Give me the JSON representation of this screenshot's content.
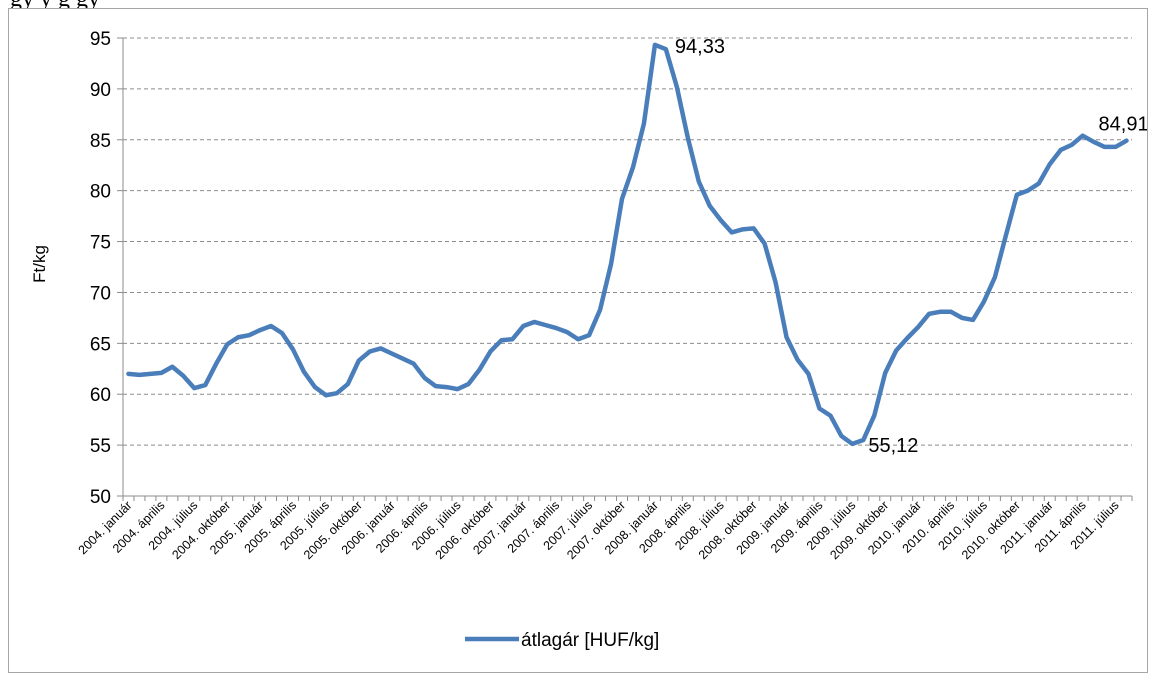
{
  "header_fragment": "gy  y  g  gy",
  "chart_data": {
    "type": "line",
    "ylabel": "Ft/kg",
    "xlabel": "",
    "ylim": [
      50,
      95
    ],
    "yticks": [
      50,
      55,
      60,
      65,
      70,
      75,
      80,
      85,
      90,
      95
    ],
    "grid": true,
    "legend_position": "bottom",
    "line_color": "#4a7ebb",
    "x": [
      "2004. január",
      "2004. február",
      "2004. március",
      "2004. április",
      "2004. május",
      "2004. június",
      "2004. július",
      "2004. augusztus",
      "2004. szeptember",
      "2004. október",
      "2004. november",
      "2004. december",
      "2005. január",
      "2005. február",
      "2005. március",
      "2005. április",
      "2005. május",
      "2005. június",
      "2005. július",
      "2005. augusztus",
      "2005. szeptember",
      "2005. október",
      "2005. november",
      "2005. december",
      "2006. január",
      "2006. február",
      "2006. március",
      "2006. április",
      "2006. május",
      "2006. június",
      "2006. július",
      "2006. augusztus",
      "2006. szeptember",
      "2006. október",
      "2006. november",
      "2006. december",
      "2007. január",
      "2007. február",
      "2007. március",
      "2007. április",
      "2007. május",
      "2007. június",
      "2007. július",
      "2007. augusztus",
      "2007. szeptember",
      "2007. október",
      "2007. november",
      "2007. december",
      "2008. január",
      "2008. február",
      "2008. március",
      "2008. április",
      "2008. május",
      "2008. június",
      "2008. július",
      "2008. augusztus",
      "2008. szeptember",
      "2008. október",
      "2008. november",
      "2008. december",
      "2009. január",
      "2009. február",
      "2009. március",
      "2009. április",
      "2009. május",
      "2009. június",
      "2009. július",
      "2009. augusztus",
      "2009. szeptember",
      "2009. október",
      "2009. november",
      "2009. december",
      "2010. január",
      "2010. február",
      "2010. március",
      "2010. április",
      "2010. május",
      "2010. június",
      "2010. július",
      "2010. augusztus",
      "2010. szeptember",
      "2010. október",
      "2010. november",
      "2010. december",
      "2011. január",
      "2011. február",
      "2011. március",
      "2011. április",
      "2011. május",
      "2011. június",
      "2011. július",
      "2011. augusztus"
    ],
    "tick_labels": [
      "2004. január",
      "2004. április",
      "2004. július",
      "2004. október",
      "2005. január",
      "2005. április",
      "2005. július",
      "2005. október",
      "2006. január",
      "2006. április",
      "2006. július",
      "2006. október",
      "2007. január",
      "2007. április",
      "2007. július",
      "2007. október",
      "2008. január",
      "2008. április",
      "2008. július",
      "2008. október",
      "2009. január",
      "2009. április",
      "2009. július",
      "2009. október",
      "2010. január",
      "2010. április",
      "2010. július",
      "2010. október",
      "2011. január",
      "2011. április",
      "2011. július"
    ],
    "series": [
      {
        "name": "átlagár [HUF/kg]",
        "values": [
          62.0,
          61.9,
          62.0,
          62.1,
          62.7,
          61.8,
          60.6,
          60.9,
          63.0,
          64.9,
          65.6,
          65.8,
          66.3,
          66.7,
          66.0,
          64.4,
          62.2,
          60.7,
          59.9,
          60.1,
          61.0,
          63.3,
          64.2,
          64.5,
          64.0,
          63.5,
          63.0,
          61.6,
          60.8,
          60.7,
          60.5,
          61.0,
          62.4,
          64.2,
          65.3,
          65.4,
          66.7,
          67.1,
          66.8,
          66.5,
          66.1,
          65.4,
          65.8,
          68.3,
          72.8,
          79.2,
          82.3,
          86.6,
          94.33,
          93.9,
          90.2,
          85.2,
          80.9,
          78.5,
          77.1,
          75.9,
          76.2,
          76.3,
          74.8,
          71.0,
          65.6,
          63.4,
          62.0,
          58.6,
          57.9,
          55.9,
          55.12,
          55.5,
          57.9,
          62.1,
          64.3,
          65.5,
          66.6,
          67.9,
          68.1,
          68.1,
          67.5,
          67.3,
          69.1,
          71.5,
          75.6,
          79.6,
          80.0,
          80.7,
          82.6,
          84.0,
          84.5,
          85.4,
          84.8,
          84.3,
          84.3,
          84.91
        ]
      }
    ],
    "data_labels": [
      {
        "text": "94,33",
        "index": 48
      },
      {
        "text": "55,12",
        "index": 66
      },
      {
        "text": "84,91",
        "index": 91
      }
    ]
  }
}
